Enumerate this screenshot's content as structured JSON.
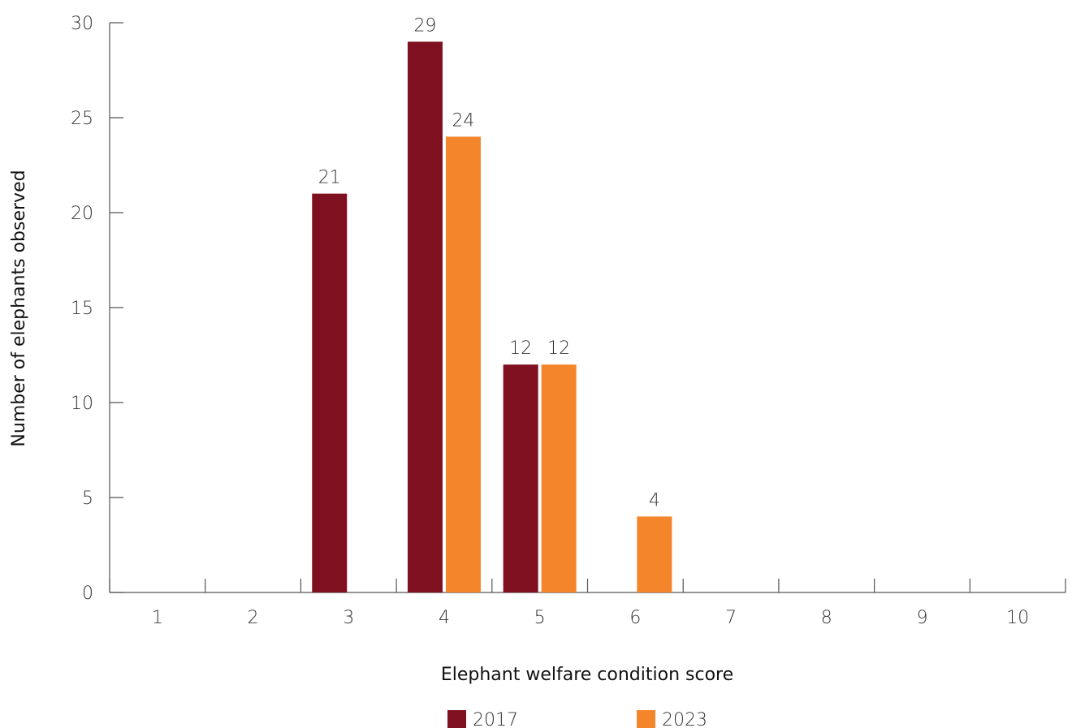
{
  "chart_data": {
    "type": "bar",
    "categories": [
      "1",
      "2",
      "3",
      "4",
      "5",
      "6",
      "7",
      "8",
      "9",
      "10"
    ],
    "series": [
      {
        "name": "2017",
        "color": "#7f1020",
        "values": [
          null,
          null,
          21,
          29,
          12,
          null,
          null,
          null,
          null,
          null
        ]
      },
      {
        "name": "2023",
        "color": "#f4852b",
        "values": [
          null,
          null,
          null,
          24,
          12,
          4,
          null,
          null,
          null,
          null
        ]
      }
    ],
    "title": "",
    "xlabel": "Elephant welfare condition score",
    "ylabel": "Number of elephants observed",
    "ylim": [
      0,
      30
    ],
    "yticks": [
      0,
      5,
      10,
      15,
      20,
      25,
      30
    ],
    "grid": false,
    "legend_position": "bottom"
  }
}
